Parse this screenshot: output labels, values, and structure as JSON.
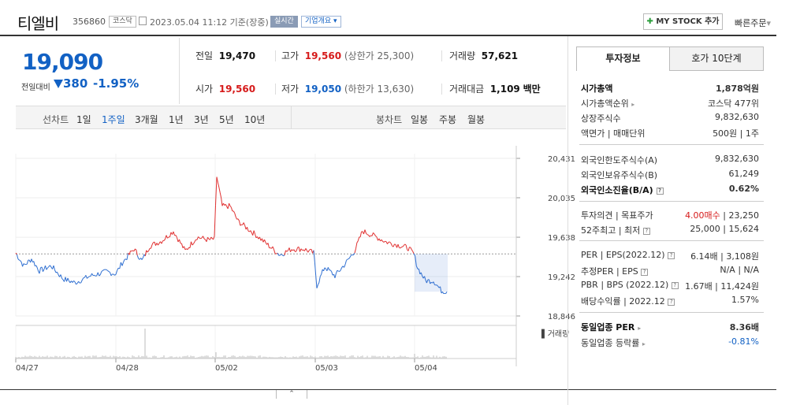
{
  "header": {
    "name": "티엘비",
    "code": "356860",
    "market_badge": "코스닥",
    "datetime": "2023.05.04 11:12 기준(장중)",
    "realtime_badge": "실시간",
    "company_badge": "기업개요",
    "mystock_label": "MY STOCK 추가",
    "quick_order": "빠른주문"
  },
  "price": {
    "current": "19,090",
    "change_label": "전일대비",
    "change_value": "380",
    "change_pct": "-1.95%"
  },
  "summary": {
    "prev_label": "전일",
    "prev": "19,470",
    "high_label": "고가",
    "high": "19,560",
    "upper_label": "(상한가 25,300)",
    "volume_label": "거래량",
    "volume": "57,621",
    "open_label": "시가",
    "open": "19,560",
    "low_label": "저가",
    "low": "19,050",
    "lower_label": "(하한가 13,630)",
    "amount_label": "거래대금",
    "amount": "1,109",
    "amount_unit": "백만"
  },
  "periods": {
    "line_label": "선차트",
    "items": [
      "1일",
      "1주일",
      "3개월",
      "1년",
      "3년",
      "5년",
      "10년"
    ],
    "active": "1주일",
    "candle_label": "봉차트",
    "candles": [
      "일봉",
      "주봉",
      "월봉"
    ]
  },
  "chart_data": {
    "type": "line",
    "x": [
      "04/27",
      "04/28",
      "05/02",
      "05/03",
      "05/04"
    ],
    "y_ticks": [
      20431,
      20035,
      19638,
      19242,
      18846
    ],
    "ylim": [
      18846,
      20431
    ],
    "reference_line": 19470,
    "volume_label": "거래량",
    "colors": {
      "up": "#e03030",
      "down": "#2f6fd1"
    }
  },
  "tabs": {
    "invest": "투자정보",
    "orderbook": "호가 10단계"
  },
  "invest": {
    "mcap_label": "시가총액",
    "mcap": "1,878억원",
    "mcap_rank_label": "시가총액순위",
    "mcap_rank": "코스닥 477위",
    "shares_label": "상장주식수",
    "shares": "9,832,630",
    "face_label": "액면가 | 매매단위",
    "face": "500원 | 1주",
    "foreign_limit_label": "외국인한도주식수(A)",
    "foreign_limit": "9,832,630",
    "foreign_hold_label": "외국인보유주식수(B)",
    "foreign_hold": "61,249",
    "foreign_rate_label": "외국인소진율(B/A)",
    "foreign_rate": "0.62%",
    "opinion_label": "투자의견 | 목표주가",
    "opinion": "4.00매수",
    "target": "23,250",
    "week52_label": "52주최고 | 최저",
    "week52": "25,000 | 15,624",
    "per_label": "PER | EPS(2022.12)",
    "per": "6.14배 | 3,108원",
    "est_per_label": "추정PER | EPS",
    "est_per": "N/A | N/A",
    "pbr_label": "PBR | BPS (2022.12)",
    "pbr": "1.67배 | 11,424원",
    "div_label": "배당수익률 | 2022.12",
    "div": "1.57%",
    "sector_per_label": "동일업종 PER",
    "sector_per": "8.36배",
    "sector_rate_label": "동일업종 등락률",
    "sector_rate": "-0.81%"
  }
}
